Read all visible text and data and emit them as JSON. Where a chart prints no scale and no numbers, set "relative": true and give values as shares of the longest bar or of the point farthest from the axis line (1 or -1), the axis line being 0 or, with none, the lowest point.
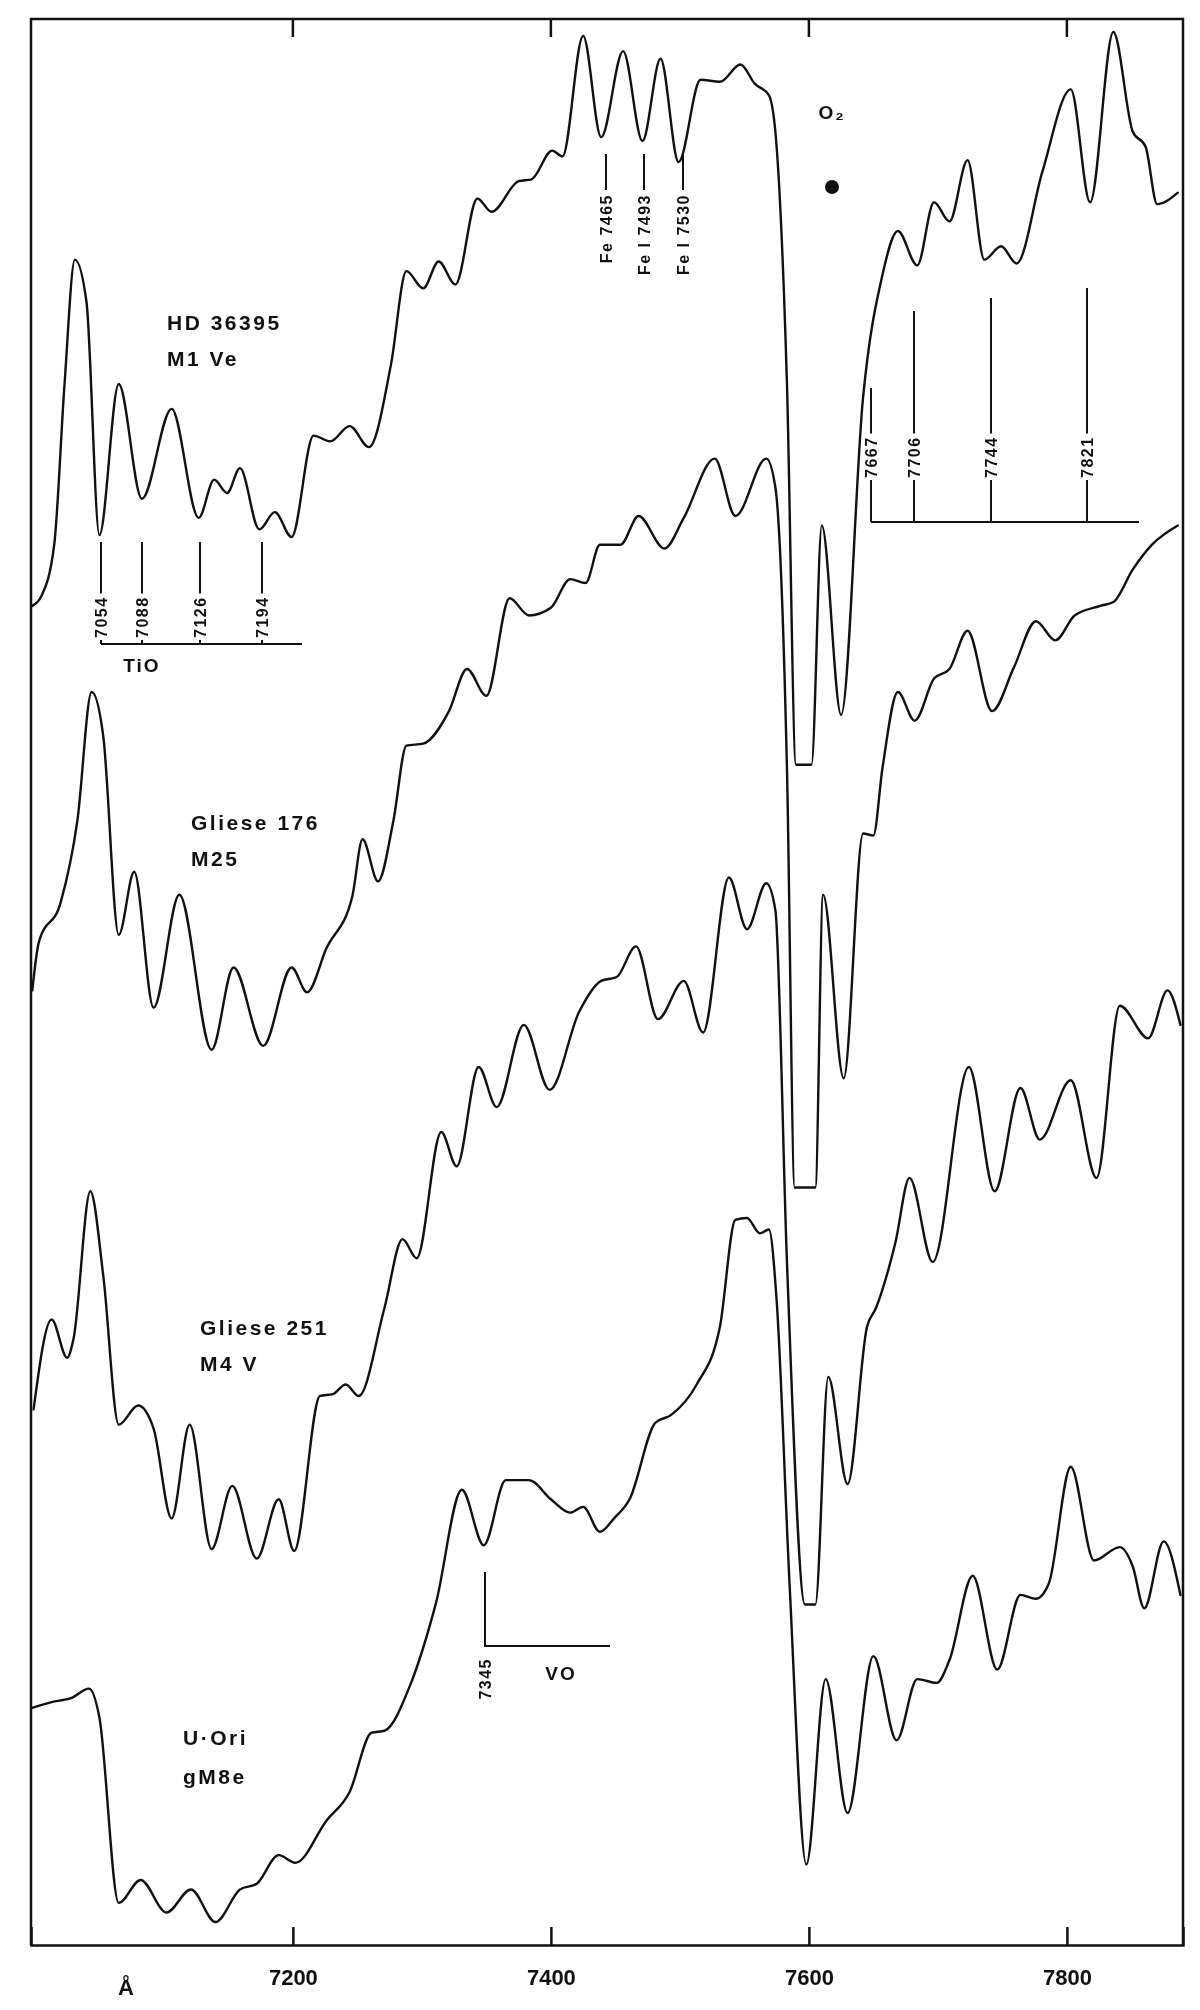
{
  "chart_data": {
    "type": "line",
    "relative": true,
    "xlabel": "Å",
    "xlim": [
      6997,
      7890
    ],
    "xticks": [
      7200,
      7400,
      7600,
      7800
    ],
    "series": [
      {
        "color": "#111111",
        "x": [
          6998,
          7005,
          7015,
          7023,
          7031,
          7040,
          7050,
          7065,
          7083,
          7106,
          7127,
          7139,
          7149,
          7159,
          7174,
          7186,
          7199,
          7216,
          7229,
          7244,
          7259,
          7276,
          7288,
          7301,
          7313,
          7326,
          7343,
          7354,
          7375,
          7385,
          7401,
          7409,
          7425,
          7439,
          7456,
          7471,
          7485,
          7499,
          7516,
          7531,
          7547,
          7558,
          7569,
          7575,
          7583,
          7590,
          7602,
          7610,
          7625,
          7642,
          7657,
          7669,
          7684,
          7697,
          7709,
          7723,
          7736,
          7749,
          7761,
          7781,
          7803,
          7818,
          7836,
          7851,
          7861,
          7870,
          7886
        ],
        "values": [
          0.7,
          0.705,
          0.732,
          0.816,
          0.881,
          0.859,
          0.737,
          0.816,
          0.756,
          0.803,
          0.746,
          0.766,
          0.759,
          0.772,
          0.74,
          0.749,
          0.736,
          0.789,
          0.786,
          0.794,
          0.783,
          0.826,
          0.875,
          0.866,
          0.88,
          0.868,
          0.913,
          0.906,
          0.922,
          0.923,
          0.938,
          0.935,
          0.998,
          0.945,
          0.99,
          0.943,
          0.986,
          0.932,
          0.975,
          0.974,
          0.983,
          0.973,
          0.967,
          0.94,
          0.816,
          0.617,
          0.617,
          0.742,
          0.643,
          0.809,
          0.873,
          0.896,
          0.878,
          0.911,
          0.901,
          0.933,
          0.881,
          0.888,
          0.879,
          0.927,
          0.97,
          0.911,
          1.0,
          0.948,
          0.94,
          0.91,
          0.916
        ]
      },
      {
        "color": "#111111",
        "x": [
          6998,
          7003,
          7020,
          7033,
          7044,
          7053,
          7065,
          7077,
          7092,
          7112,
          7137,
          7154,
          7177,
          7199,
          7211,
          7226,
          7246,
          7254,
          7266,
          7278,
          7288,
          7301,
          7321,
          7335,
          7350,
          7368,
          7383,
          7400,
          7415,
          7427,
          7438,
          7454,
          7468,
          7488,
          7503,
          7527,
          7543,
          7567,
          7574,
          7583,
          7589,
          7605,
          7611,
          7627,
          7642,
          7650,
          7657,
          7669,
          7682,
          7697,
          7709,
          7723,
          7742,
          7759,
          7776,
          7791,
          7806,
          7826,
          7836,
          7851,
          7866,
          7886
        ],
        "values": [
          0.499,
          0.524,
          0.545,
          0.588,
          0.655,
          0.632,
          0.528,
          0.561,
          0.49,
          0.549,
          0.468,
          0.511,
          0.47,
          0.511,
          0.498,
          0.521,
          0.548,
          0.578,
          0.556,
          0.588,
          0.627,
          0.628,
          0.645,
          0.667,
          0.653,
          0.704,
          0.695,
          0.699,
          0.714,
          0.712,
          0.732,
          0.732,
          0.747,
          0.73,
          0.746,
          0.777,
          0.747,
          0.777,
          0.762,
          0.615,
          0.396,
          0.396,
          0.549,
          0.453,
          0.581,
          0.58,
          0.615,
          0.655,
          0.64,
          0.662,
          0.667,
          0.687,
          0.645,
          0.668,
          0.692,
          0.682,
          0.695,
          0.7,
          0.702,
          0.719,
          0.732,
          0.742
        ]
      },
      {
        "color": "#111111",
        "x": [
          6999,
          7013,
          7025,
          7030,
          7043,
          7053,
          7065,
          7080,
          7092,
          7106,
          7120,
          7137,
          7153,
          7172,
          7189,
          7201,
          7221,
          7231,
          7241,
          7251,
          7271,
          7285,
          7296,
          7315,
          7327,
          7344,
          7358,
          7379,
          7399,
          7422,
          7439,
          7451,
          7466,
          7483,
          7503,
          7518,
          7538,
          7552,
          7567,
          7574,
          7583,
          7597,
          7605,
          7615,
          7630,
          7645,
          7652,
          7667,
          7678,
          7696,
          7724,
          7744,
          7764,
          7779,
          7803,
          7823,
          7841,
          7863,
          7878,
          7888
        ],
        "values": [
          0.28,
          0.327,
          0.307,
          0.317,
          0.394,
          0.35,
          0.272,
          0.282,
          0.27,
          0.223,
          0.272,
          0.207,
          0.24,
          0.202,
          0.233,
          0.206,
          0.287,
          0.288,
          0.293,
          0.287,
          0.333,
          0.369,
          0.359,
          0.425,
          0.407,
          0.459,
          0.438,
          0.481,
          0.447,
          0.488,
          0.504,
          0.506,
          0.522,
          0.484,
          0.504,
          0.477,
          0.558,
          0.531,
          0.555,
          0.541,
          0.357,
          0.178,
          0.178,
          0.297,
          0.241,
          0.323,
          0.333,
          0.367,
          0.401,
          0.357,
          0.459,
          0.394,
          0.448,
          0.421,
          0.452,
          0.401,
          0.491,
          0.474,
          0.499,
          0.481
        ]
      },
      {
        "color": "#111111",
        "x": [
          6998,
          7013,
          7028,
          7042,
          7050,
          7065,
          7082,
          7102,
          7121,
          7140,
          7159,
          7172,
          7189,
          7202,
          7226,
          7244,
          7261,
          7271,
          7291,
          7311,
          7331,
          7348,
          7365,
          7383,
          7400,
          7415,
          7425,
          7438,
          7449,
          7461,
          7481,
          7493,
          7513,
          7531,
          7543,
          7552,
          7562,
          7569,
          7575,
          7585,
          7598,
          7613,
          7630,
          7650,
          7668,
          7684,
          7699,
          7709,
          7727,
          7746,
          7764,
          7776,
          7786,
          7803,
          7821,
          7841,
          7851,
          7860,
          7875,
          7888
        ],
        "values": [
          0.124,
          0.127,
          0.129,
          0.134,
          0.119,
          0.022,
          0.034,
          0.017,
          0.029,
          0.012,
          0.029,
          0.032,
          0.047,
          0.043,
          0.065,
          0.08,
          0.111,
          0.112,
          0.136,
          0.179,
          0.238,
          0.209,
          0.243,
          0.243,
          0.233,
          0.226,
          0.229,
          0.216,
          0.223,
          0.233,
          0.273,
          0.277,
          0.293,
          0.323,
          0.379,
          0.38,
          0.372,
          0.374,
          0.337,
          0.189,
          0.042,
          0.139,
          0.069,
          0.151,
          0.107,
          0.139,
          0.137,
          0.149,
          0.193,
          0.144,
          0.183,
          0.181,
          0.189,
          0.25,
          0.201,
          0.208,
          0.198,
          0.176,
          0.211,
          0.183
        ]
      }
    ],
    "annotations": [
      "7054",
      "7088",
      "7126",
      "7194",
      "TiO",
      "Fe 7465",
      "Fe I 7493",
      "Fe I 7530",
      "O₂",
      "7667",
      "7706",
      "7744",
      "7821",
      "7345",
      "VO",
      "HD 36395",
      "M1 Ve",
      "Gliese 176",
      "M25",
      "Gliese 251",
      "M4 V",
      "U·Ori",
      "gM8e"
    ]
  }
}
